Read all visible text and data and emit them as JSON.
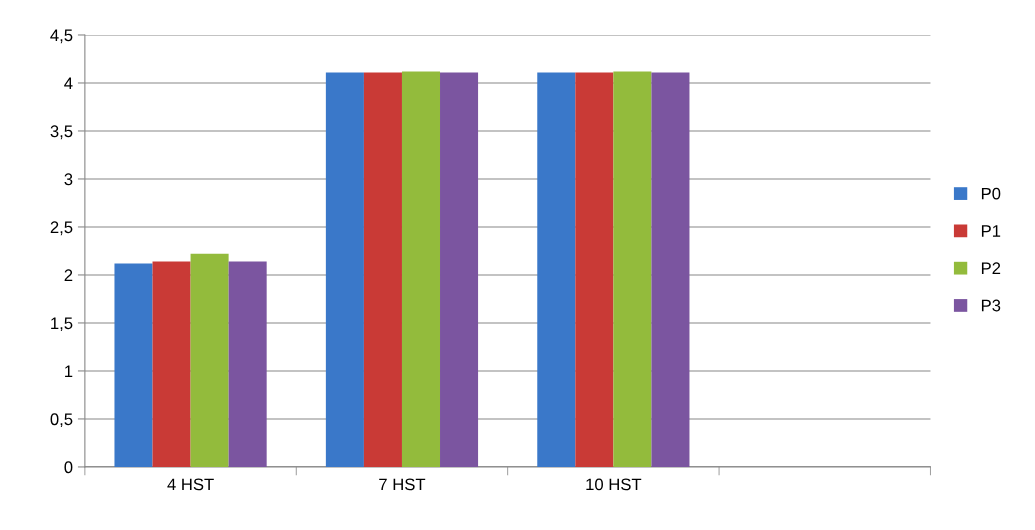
{
  "chart_data": {
    "type": "bar",
    "categories": [
      "4 HST",
      "7 HST",
      "10 HST",
      null
    ],
    "series": [
      {
        "name": "P0",
        "color": "#3a78c9",
        "values": [
          2.12,
          4.11,
          4.11,
          null
        ]
      },
      {
        "name": "P1",
        "color": "#c93a36",
        "values": [
          2.14,
          4.11,
          4.11,
          null
        ]
      },
      {
        "name": "P2",
        "color": "#93bb3c",
        "values": [
          2.22,
          4.12,
          4.12,
          null
        ]
      },
      {
        "name": "P3",
        "color": "#7b55a0",
        "values": [
          2.14,
          4.11,
          4.11,
          null
        ]
      }
    ],
    "ylim": [
      0,
      4.5
    ],
    "yticks": [
      0,
      {
        "value": 0.5,
        "label": "0,5"
      },
      1,
      {
        "value": 1.5,
        "label": "1,5"
      },
      2,
      {
        "value": 2.5,
        "label": "2,5"
      },
      3,
      {
        "value": 3.5,
        "label": "3,5"
      },
      4,
      {
        "value": 4.5,
        "label": "4,5"
      }
    ],
    "grid": "y",
    "legend": "right"
  }
}
